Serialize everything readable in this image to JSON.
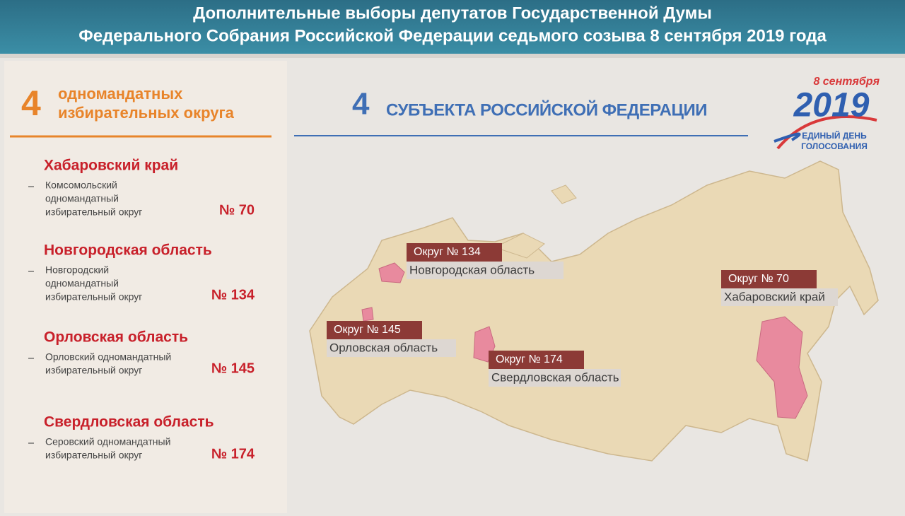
{
  "header": {
    "title_lines": [
      "Дополнительные  выборы депутатов Государственной Думы",
      "Федерального Собрания Российской Федерации седьмого созыва 8 сентября 2019 года"
    ]
  },
  "left_panel": {
    "count": "4",
    "label_lines": [
      "одномандатных",
      "избирательных округа"
    ],
    "districts": [
      {
        "region": "Хабаровский край",
        "description_lines": [
          "Комсомольский",
          "одномандатный",
          "избирательный округ"
        ],
        "number": "№ 70"
      },
      {
        "region": "Новгородская область",
        "description_lines": [
          "Новгородский",
          "одномандатный",
          "избирательный округ"
        ],
        "number": "№ 134"
      },
      {
        "region": "Орловская область",
        "description_lines": [
          "Орловский одномандатный",
          "избирательный округ"
        ],
        "number": "№ 145"
      },
      {
        "region": "Свердловская область",
        "description_lines": [
          "Серовский одномандатный",
          "избирательный округ"
        ],
        "number": "№ 174"
      }
    ]
  },
  "map_panel": {
    "count": "4",
    "label": "СУБЪЕКТА РОССИЙСКОЙ ФЕДЕРАЦИИ",
    "map_labels": [
      {
        "district": "Округ № 134",
        "region": "Новгородская область"
      },
      {
        "district": "Округ № 145",
        "region": "Орловская область"
      },
      {
        "district": "Округ № 174",
        "region": "Свердловская область"
      },
      {
        "district": "Округ № 70",
        "region": "Хабаровский край"
      }
    ]
  },
  "logo": {
    "date": "8 сентября",
    "year": "2019",
    "caption_lines": [
      "ЕДИНЫЙ ДЕНЬ",
      "ГОЛОСОВАНИЯ"
    ]
  }
}
